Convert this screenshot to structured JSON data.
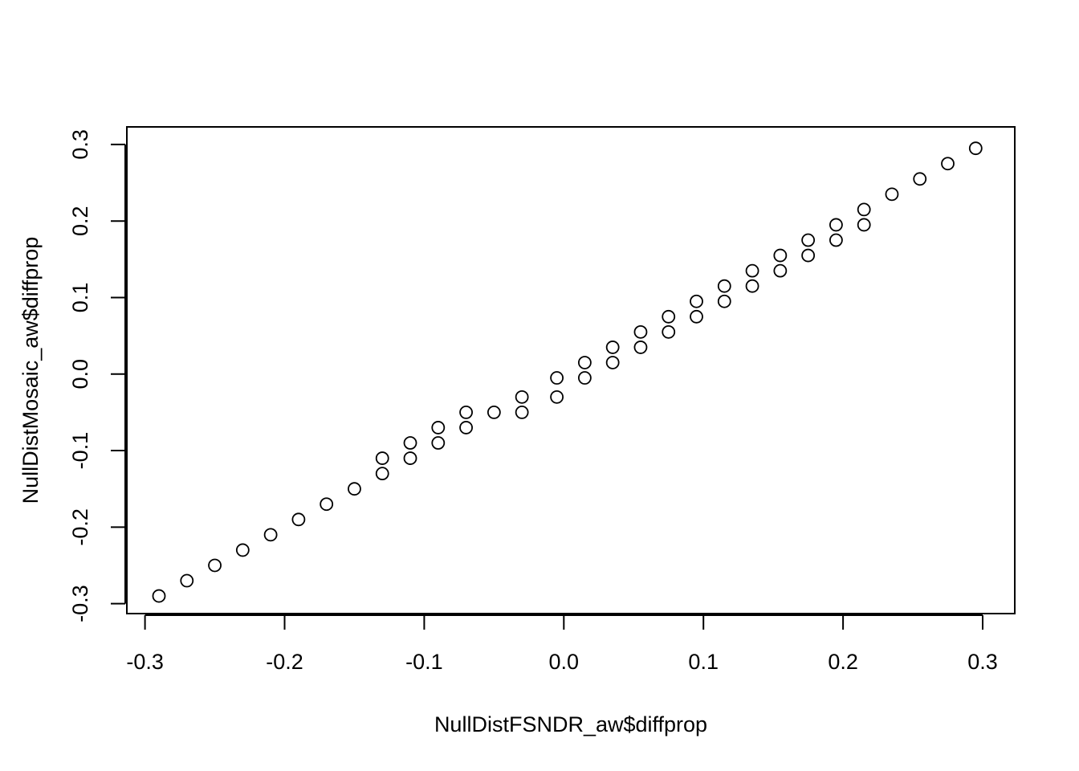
{
  "chart_data": {
    "type": "scatter",
    "title": "",
    "xlabel": "NullDistFSNDR_aw$diffprop",
    "ylabel": "NullDistMosaic_aw$diffprop",
    "xlim": [
      -0.313,
      0.323
    ],
    "ylim": [
      -0.313,
      0.323
    ],
    "xticks": [
      -0.3,
      -0.2,
      -0.1,
      0.0,
      0.1,
      0.2,
      0.3
    ],
    "yticks": [
      -0.3,
      -0.2,
      -0.1,
      0.0,
      0.1,
      0.2,
      0.3
    ],
    "xtick_labels": [
      "-0.3",
      "-0.2",
      "-0.1",
      "0.0",
      "0.1",
      "0.2",
      "0.3"
    ],
    "ytick_labels": [
      "-0.3",
      "-0.2",
      "-0.1",
      "0.0",
      "0.1",
      "0.2",
      "0.3"
    ],
    "grid": false,
    "legend": "none",
    "marker": "open-circle",
    "series": [
      {
        "x": [
          -0.29,
          -0.27,
          -0.25,
          -0.23,
          -0.21,
          -0.19,
          -0.17,
          -0.15,
          -0.13,
          -0.13,
          -0.11,
          -0.11,
          -0.09,
          -0.09,
          -0.07,
          -0.07,
          -0.05,
          -0.03,
          -0.03,
          -0.005,
          -0.005,
          0.015,
          0.015,
          0.035,
          0.035,
          0.055,
          0.055,
          0.075,
          0.075,
          0.095,
          0.095,
          0.115,
          0.115,
          0.135,
          0.135,
          0.155,
          0.155,
          0.175,
          0.175,
          0.195,
          0.195,
          0.215,
          0.215,
          0.235,
          0.255,
          0.275,
          0.295
        ],
        "y": [
          -0.29,
          -0.27,
          -0.25,
          -0.23,
          -0.21,
          -0.19,
          -0.17,
          -0.15,
          -0.13,
          -0.11,
          -0.11,
          -0.09,
          -0.09,
          -0.07,
          -0.07,
          -0.05,
          -0.05,
          -0.05,
          -0.03,
          -0.03,
          -0.005,
          -0.005,
          0.015,
          0.015,
          0.035,
          0.035,
          0.055,
          0.055,
          0.075,
          0.075,
          0.095,
          0.095,
          0.115,
          0.115,
          0.135,
          0.135,
          0.155,
          0.155,
          0.175,
          0.175,
          0.195,
          0.195,
          0.215,
          0.235,
          0.255,
          0.275,
          0.295
        ]
      }
    ]
  }
}
